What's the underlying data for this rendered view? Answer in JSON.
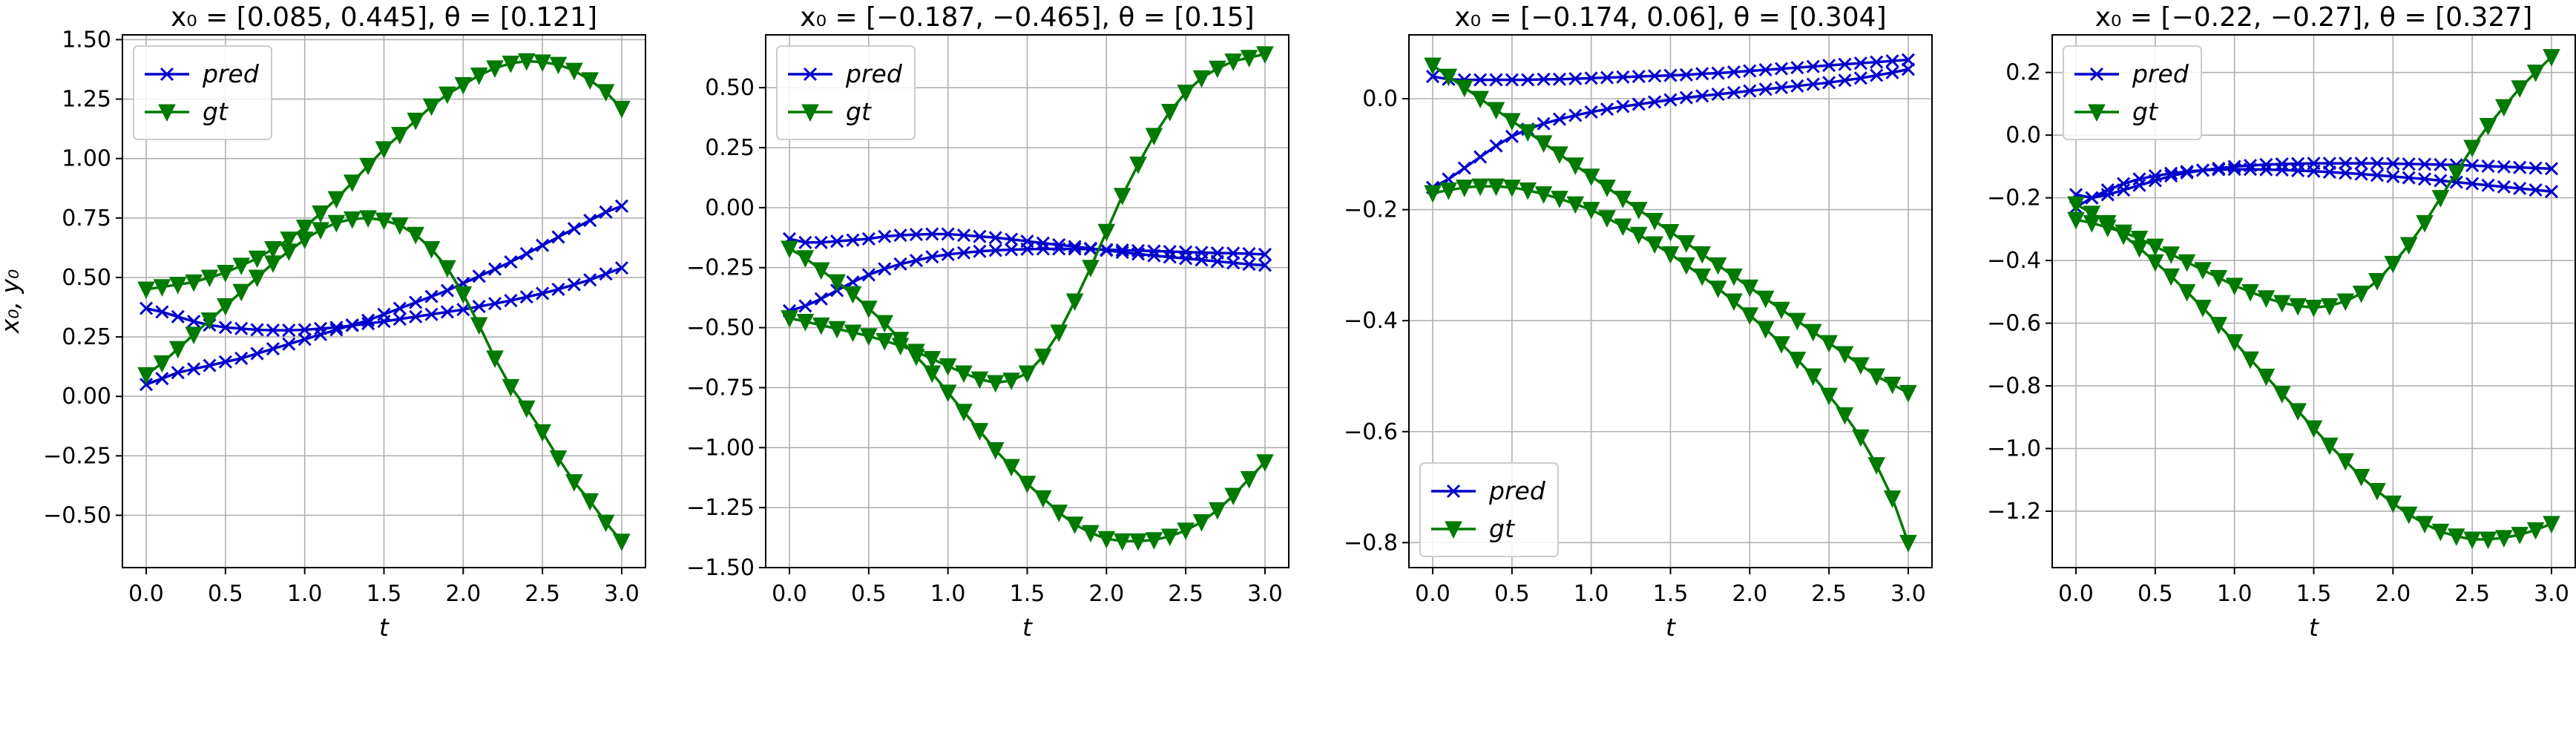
{
  "figure": {
    "colors": {
      "pred": "#0000cc",
      "gt": "#007a00",
      "grid": "#b0b0b0",
      "legend_border": "#cccccc"
    }
  },
  "chart_data": [
    {
      "type": "line",
      "title": "x₀ = [0.085, 0.445], θ = [0.121]",
      "xlabel": "t",
      "ylabel": "x₀, y₀",
      "xlim": [
        -0.15,
        3.15
      ],
      "ylim": [
        -0.72,
        1.52
      ],
      "xticks": [
        0.0,
        0.5,
        1.0,
        1.5,
        2.0,
        2.5,
        3.0
      ],
      "xtick_labels": [
        "0.0",
        "0.5",
        "1.0",
        "1.5",
        "2.0",
        "2.5",
        "3.0"
      ],
      "yticks": [
        -0.5,
        -0.25,
        0.0,
        0.25,
        0.5,
        0.75,
        1.0,
        1.25,
        1.5
      ],
      "ytick_labels": [
        "−0.50",
        "−0.25",
        "0.00",
        "0.25",
        "0.50",
        "0.75",
        "1.00",
        "1.25",
        "1.50"
      ],
      "grid": true,
      "legend": {
        "position": "upper-left",
        "entries": [
          "pred",
          "gt"
        ]
      },
      "t": [
        0.0,
        0.1,
        0.2,
        0.3,
        0.4,
        0.5,
        0.6,
        0.7,
        0.8,
        0.9,
        1.0,
        1.1,
        1.2,
        1.3,
        1.4,
        1.5,
        1.6,
        1.7,
        1.8,
        1.9,
        2.0,
        2.1,
        2.2,
        2.3,
        2.4,
        2.5,
        2.6,
        2.7,
        2.8,
        2.9,
        3.0
      ],
      "series": [
        {
          "name": "pred",
          "role": "pred",
          "marker": "x",
          "values": [
            0.05,
            0.075,
            0.1,
            0.115,
            0.13,
            0.145,
            0.16,
            0.18,
            0.2,
            0.22,
            0.24,
            0.26,
            0.28,
            0.3,
            0.32,
            0.345,
            0.37,
            0.395,
            0.42,
            0.445,
            0.475,
            0.505,
            0.535,
            0.565,
            0.6,
            0.635,
            0.67,
            0.705,
            0.74,
            0.775,
            0.8
          ]
        },
        {
          "name": "",
          "role": "pred",
          "marker": "x",
          "values": [
            0.37,
            0.355,
            0.335,
            0.315,
            0.3,
            0.29,
            0.285,
            0.28,
            0.278,
            0.278,
            0.28,
            0.285,
            0.29,
            0.298,
            0.306,
            0.315,
            0.325,
            0.335,
            0.345,
            0.355,
            0.365,
            0.378,
            0.39,
            0.403,
            0.418,
            0.433,
            0.45,
            0.47,
            0.49,
            0.515,
            0.54
          ]
        },
        {
          "name": "gt",
          "role": "gt",
          "marker": "v",
          "values": [
            0.45,
            0.46,
            0.47,
            0.48,
            0.5,
            0.52,
            0.55,
            0.58,
            0.62,
            0.66,
            0.71,
            0.77,
            0.83,
            0.9,
            0.97,
            1.04,
            1.1,
            1.16,
            1.22,
            1.27,
            1.31,
            1.35,
            1.38,
            1.4,
            1.41,
            1.405,
            1.395,
            1.37,
            1.33,
            1.28,
            1.21
          ]
        },
        {
          "name": "",
          "role": "gt",
          "marker": "v",
          "values": [
            0.09,
            0.14,
            0.2,
            0.26,
            0.32,
            0.38,
            0.44,
            0.5,
            0.56,
            0.61,
            0.66,
            0.7,
            0.73,
            0.745,
            0.75,
            0.74,
            0.72,
            0.68,
            0.62,
            0.54,
            0.43,
            0.3,
            0.16,
            0.04,
            -0.05,
            -0.15,
            -0.26,
            -0.36,
            -0.44,
            -0.53,
            -0.61
          ]
        }
      ]
    },
    {
      "type": "line",
      "title": "x₀ = [−0.187, −0.465], θ = [0.15]",
      "xlabel": "t",
      "ylabel": "",
      "xlim": [
        -0.15,
        3.15
      ],
      "ylim": [
        -1.5,
        0.72
      ],
      "xticks": [
        0.0,
        0.5,
        1.0,
        1.5,
        2.0,
        2.5,
        3.0
      ],
      "xtick_labels": [
        "0.0",
        "0.5",
        "1.0",
        "1.5",
        "2.0",
        "2.5",
        "3.0"
      ],
      "yticks": [
        -1.5,
        -1.25,
        -1.0,
        -0.75,
        -0.5,
        -0.25,
        0.0,
        0.25,
        0.5
      ],
      "ytick_labels": [
        "−1.50",
        "−1.25",
        "−1.00",
        "−0.75",
        "−0.50",
        "−0.25",
        "0.00",
        "0.25",
        "0.50"
      ],
      "grid": true,
      "legend": {
        "position": "upper-left",
        "entries": [
          "pred",
          "gt"
        ]
      },
      "t": [
        0.0,
        0.1,
        0.2,
        0.3,
        0.4,
        0.5,
        0.6,
        0.7,
        0.8,
        0.9,
        1.0,
        1.1,
        1.2,
        1.3,
        1.4,
        1.5,
        1.6,
        1.7,
        1.8,
        1.9,
        2.0,
        2.1,
        2.2,
        2.3,
        2.4,
        2.5,
        2.6,
        2.7,
        2.8,
        2.9,
        3.0
      ],
      "series": [
        {
          "name": "pred",
          "role": "pred",
          "marker": "x",
          "values": [
            -0.13,
            -0.145,
            -0.145,
            -0.14,
            -0.135,
            -0.13,
            -0.12,
            -0.115,
            -0.112,
            -0.11,
            -0.11,
            -0.115,
            -0.12,
            -0.125,
            -0.132,
            -0.14,
            -0.148,
            -0.155,
            -0.162,
            -0.17,
            -0.178,
            -0.186,
            -0.193,
            -0.2,
            -0.206,
            -0.212,
            -0.218,
            -0.224,
            -0.23,
            -0.236,
            -0.24
          ]
        },
        {
          "name": "",
          "role": "pred",
          "marker": "x",
          "values": [
            -0.43,
            -0.41,
            -0.38,
            -0.345,
            -0.31,
            -0.28,
            -0.255,
            -0.235,
            -0.22,
            -0.205,
            -0.195,
            -0.188,
            -0.182,
            -0.178,
            -0.175,
            -0.173,
            -0.172,
            -0.172,
            -0.172,
            -0.173,
            -0.175,
            -0.177,
            -0.179,
            -0.181,
            -0.183,
            -0.185,
            -0.187,
            -0.189,
            -0.19,
            -0.192,
            -0.195
          ]
        },
        {
          "name": "gt",
          "role": "gt",
          "marker": "v",
          "values": [
            -0.46,
            -0.475,
            -0.49,
            -0.505,
            -0.52,
            -0.535,
            -0.555,
            -0.575,
            -0.6,
            -0.63,
            -0.66,
            -0.69,
            -0.715,
            -0.73,
            -0.72,
            -0.69,
            -0.62,
            -0.52,
            -0.39,
            -0.25,
            -0.1,
            0.05,
            0.18,
            0.3,
            0.4,
            0.48,
            0.54,
            0.58,
            0.61,
            0.625,
            0.64
          ]
        },
        {
          "name": "",
          "role": "gt",
          "marker": "v",
          "values": [
            -0.17,
            -0.21,
            -0.26,
            -0.31,
            -0.36,
            -0.42,
            -0.48,
            -0.55,
            -0.62,
            -0.69,
            -0.77,
            -0.85,
            -0.93,
            -1.01,
            -1.08,
            -1.15,
            -1.21,
            -1.27,
            -1.32,
            -1.355,
            -1.38,
            -1.39,
            -1.39,
            -1.385,
            -1.37,
            -1.345,
            -1.31,
            -1.26,
            -1.2,
            -1.13,
            -1.06
          ]
        }
      ]
    },
    {
      "type": "line",
      "title": "x₀ = [−0.174, 0.06], θ = [0.304]",
      "xlabel": "t",
      "ylabel": "",
      "xlim": [
        -0.15,
        3.15
      ],
      "ylim": [
        -0.845,
        0.115
      ],
      "xticks": [
        0.0,
        0.5,
        1.0,
        1.5,
        2.0,
        2.5,
        3.0
      ],
      "xtick_labels": [
        "0.0",
        "0.5",
        "1.0",
        "1.5",
        "2.0",
        "2.5",
        "3.0"
      ],
      "yticks": [
        -0.8,
        -0.6,
        -0.4,
        -0.2,
        0.0
      ],
      "ytick_labels": [
        "−0.8",
        "−0.6",
        "−0.4",
        "−0.2",
        "0.0"
      ],
      "grid": true,
      "legend": {
        "position": "lower-left",
        "entries": [
          "pred",
          "gt"
        ]
      },
      "t": [
        0.0,
        0.1,
        0.2,
        0.3,
        0.4,
        0.5,
        0.6,
        0.7,
        0.8,
        0.9,
        1.0,
        1.1,
        1.2,
        1.3,
        1.4,
        1.5,
        1.6,
        1.7,
        1.8,
        1.9,
        2.0,
        2.1,
        2.2,
        2.3,
        2.4,
        2.5,
        2.6,
        2.7,
        2.8,
        2.9,
        3.0
      ],
      "series": [
        {
          "name": "pred",
          "role": "pred",
          "marker": "x",
          "values": [
            0.04,
            0.035,
            0.034,
            0.034,
            0.034,
            0.034,
            0.034,
            0.035,
            0.035,
            0.036,
            0.037,
            0.038,
            0.039,
            0.04,
            0.041,
            0.042,
            0.043,
            0.045,
            0.046,
            0.048,
            0.05,
            0.052,
            0.054,
            0.056,
            0.058,
            0.06,
            0.062,
            0.064,
            0.066,
            0.068,
            0.07
          ]
        },
        {
          "name": "",
          "role": "pred",
          "marker": "x",
          "values": [
            -0.16,
            -0.145,
            -0.125,
            -0.105,
            -0.085,
            -0.068,
            -0.055,
            -0.045,
            -0.037,
            -0.03,
            -0.024,
            -0.019,
            -0.014,
            -0.01,
            -0.006,
            -0.002,
            0.002,
            0.005,
            0.008,
            0.011,
            0.014,
            0.017,
            0.02,
            0.023,
            0.026,
            0.029,
            0.033,
            0.037,
            0.042,
            0.047,
            0.053
          ]
        },
        {
          "name": "gt",
          "role": "gt",
          "marker": "v",
          "values": [
            0.06,
            0.04,
            0.02,
            0.0,
            -0.02,
            -0.04,
            -0.06,
            -0.08,
            -0.1,
            -0.12,
            -0.14,
            -0.16,
            -0.18,
            -0.2,
            -0.22,
            -0.24,
            -0.26,
            -0.28,
            -0.3,
            -0.32,
            -0.34,
            -0.36,
            -0.38,
            -0.4,
            -0.42,
            -0.44,
            -0.46,
            -0.48,
            -0.5,
            -0.515,
            -0.53
          ]
        },
        {
          "name": "",
          "role": "gt",
          "marker": "v",
          "values": [
            -0.17,
            -0.165,
            -0.16,
            -0.158,
            -0.158,
            -0.16,
            -0.165,
            -0.172,
            -0.18,
            -0.19,
            -0.2,
            -0.215,
            -0.23,
            -0.245,
            -0.262,
            -0.28,
            -0.3,
            -0.32,
            -0.342,
            -0.365,
            -0.39,
            -0.415,
            -0.442,
            -0.47,
            -0.5,
            -0.535,
            -0.57,
            -0.61,
            -0.66,
            -0.72,
            -0.8
          ]
        }
      ]
    },
    {
      "type": "line",
      "title": "x₀ = [−0.22, −0.27], θ = [0.327]",
      "xlabel": "t",
      "ylabel": "",
      "xlim": [
        -0.15,
        3.15
      ],
      "ylim": [
        -1.38,
        0.32
      ],
      "xticks": [
        0.0,
        0.5,
        1.0,
        1.5,
        2.0,
        2.5,
        3.0
      ],
      "xtick_labels": [
        "0.0",
        "0.5",
        "1.0",
        "1.5",
        "2.0",
        "2.5",
        "3.0"
      ],
      "yticks": [
        -1.2,
        -1.0,
        -0.8,
        -0.6,
        -0.4,
        -0.2,
        0.0,
        0.2
      ],
      "ytick_labels": [
        "−1.2",
        "−1.0",
        "−0.8",
        "−0.6",
        "−0.4",
        "−0.2",
        "0.0",
        "0.2"
      ],
      "grid": true,
      "legend": {
        "position": "upper-left",
        "entries": [
          "pred",
          "gt"
        ]
      },
      "t": [
        0.0,
        0.1,
        0.2,
        0.3,
        0.4,
        0.5,
        0.6,
        0.7,
        0.8,
        0.9,
        1.0,
        1.1,
        1.2,
        1.3,
        1.4,
        1.5,
        1.6,
        1.7,
        1.8,
        1.9,
        2.0,
        2.1,
        2.2,
        2.3,
        2.4,
        2.5,
        2.6,
        2.7,
        2.8,
        2.9,
        3.0
      ],
      "series": [
        {
          "name": "pred",
          "role": "pred",
          "marker": "x",
          "values": [
            -0.19,
            -0.2,
            -0.19,
            -0.175,
            -0.16,
            -0.145,
            -0.13,
            -0.12,
            -0.112,
            -0.106,
            -0.1,
            -0.097,
            -0.094,
            -0.092,
            -0.091,
            -0.09,
            -0.09,
            -0.09,
            -0.09,
            -0.09,
            -0.091,
            -0.092,
            -0.093,
            -0.094,
            -0.095,
            -0.097,
            -0.099,
            -0.101,
            -0.103,
            -0.105,
            -0.107
          ]
        },
        {
          "name": "",
          "role": "pred",
          "marker": "x",
          "values": [
            -0.23,
            -0.2,
            -0.175,
            -0.155,
            -0.14,
            -0.13,
            -0.122,
            -0.116,
            -0.112,
            -0.11,
            -0.109,
            -0.109,
            -0.11,
            -0.111,
            -0.113,
            -0.115,
            -0.118,
            -0.121,
            -0.124,
            -0.128,
            -0.132,
            -0.136,
            -0.14,
            -0.145,
            -0.15,
            -0.155,
            -0.16,
            -0.165,
            -0.17,
            -0.175,
            -0.18
          ]
        },
        {
          "name": "gt",
          "role": "gt",
          "marker": "v",
          "values": [
            -0.27,
            -0.28,
            -0.295,
            -0.31,
            -0.33,
            -0.355,
            -0.38,
            -0.405,
            -0.43,
            -0.455,
            -0.48,
            -0.5,
            -0.52,
            -0.535,
            -0.545,
            -0.55,
            -0.545,
            -0.53,
            -0.505,
            -0.465,
            -0.41,
            -0.35,
            -0.28,
            -0.2,
            -0.12,
            -0.04,
            0.03,
            0.09,
            0.15,
            0.2,
            0.25
          ]
        },
        {
          "name": "",
          "role": "gt",
          "marker": "v",
          "values": [
            -0.22,
            -0.25,
            -0.28,
            -0.32,
            -0.36,
            -0.405,
            -0.45,
            -0.5,
            -0.55,
            -0.605,
            -0.66,
            -0.715,
            -0.77,
            -0.825,
            -0.88,
            -0.935,
            -0.99,
            -1.04,
            -1.09,
            -1.135,
            -1.175,
            -1.21,
            -1.24,
            -1.265,
            -1.28,
            -1.29,
            -1.29,
            -1.285,
            -1.275,
            -1.26,
            -1.24
          ]
        }
      ]
    }
  ]
}
